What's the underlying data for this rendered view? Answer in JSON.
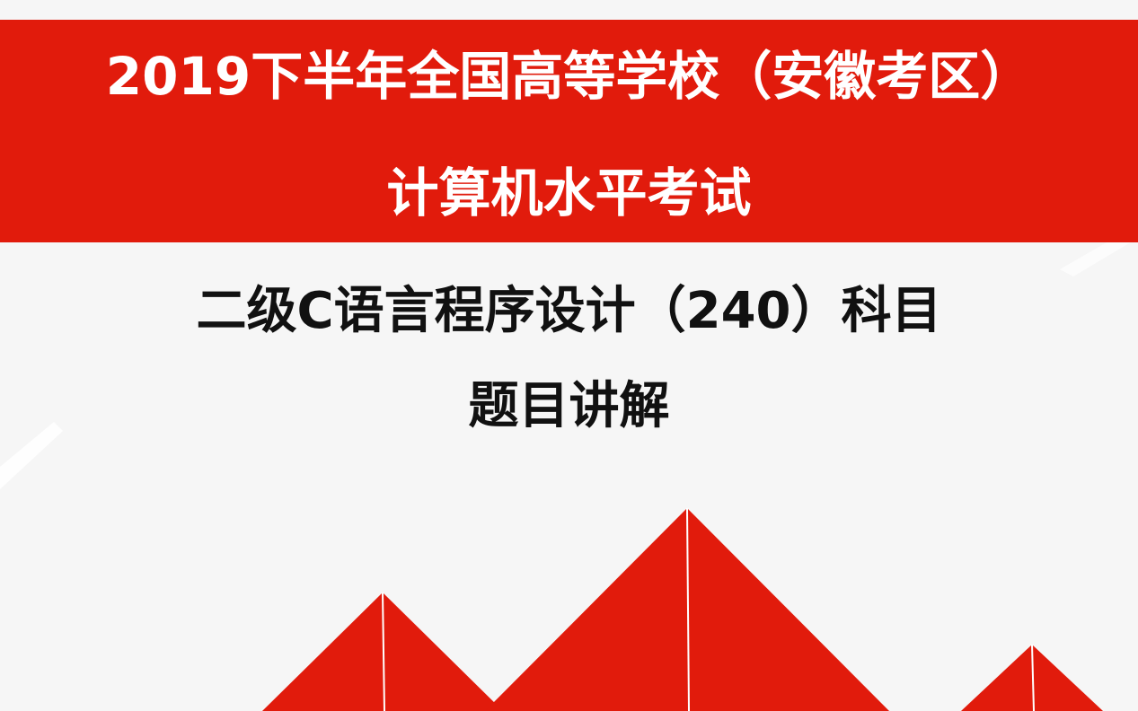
{
  "banner": {
    "line1": "2019下半年全国高等学校（安徽考区）",
    "line2": "计算机水平考试"
  },
  "subject": {
    "line1": "二级C语言程序设计（240）科目",
    "line2": "题目讲解"
  },
  "colors": {
    "accent_red": "#e11b0c",
    "background": "#f6f6f6",
    "text_dark": "#111111"
  }
}
